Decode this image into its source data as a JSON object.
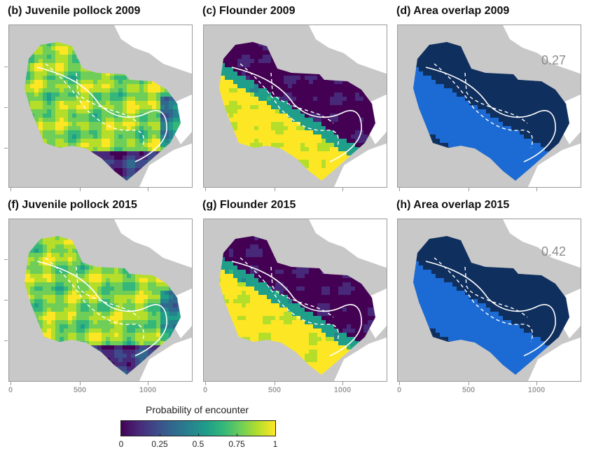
{
  "panels": [
    {
      "title": "(b) Juvenile pollock 2009",
      "kind": "pollock",
      "year": "2009"
    },
    {
      "title": "(c) Flounder 2009",
      "kind": "flounder",
      "year": "2009"
    },
    {
      "title": "(d) Area overlap 2009",
      "kind": "overlap",
      "year": "2009",
      "overlap_value": "0.27"
    },
    {
      "title": "(f) Juvenile pollock 2015",
      "kind": "pollock",
      "year": "2015"
    },
    {
      "title": "(g) Flounder 2015",
      "kind": "flounder",
      "year": "2015"
    },
    {
      "title": "(h) Area overlap 2015",
      "kind": "overlap",
      "year": "2015",
      "overlap_value": "0.42"
    }
  ],
  "x_axis": {
    "tick_labels": [
      "0",
      "500",
      "1000"
    ]
  },
  "colorbar": {
    "title": "Probability of encounter",
    "tick_labels": [
      "0",
      "0.25",
      "0.5",
      "0.75",
      "1"
    ],
    "colors": [
      "#440154",
      "#3e4a89",
      "#26828e",
      "#35b779",
      "#fde725"
    ]
  },
  "colors": {
    "land": "#c8c8c8",
    "background": "#ffffff",
    "overlap_high": "#1c6ad3",
    "overlap_low": "#0f2f5e",
    "contour": "#ffffff"
  }
}
